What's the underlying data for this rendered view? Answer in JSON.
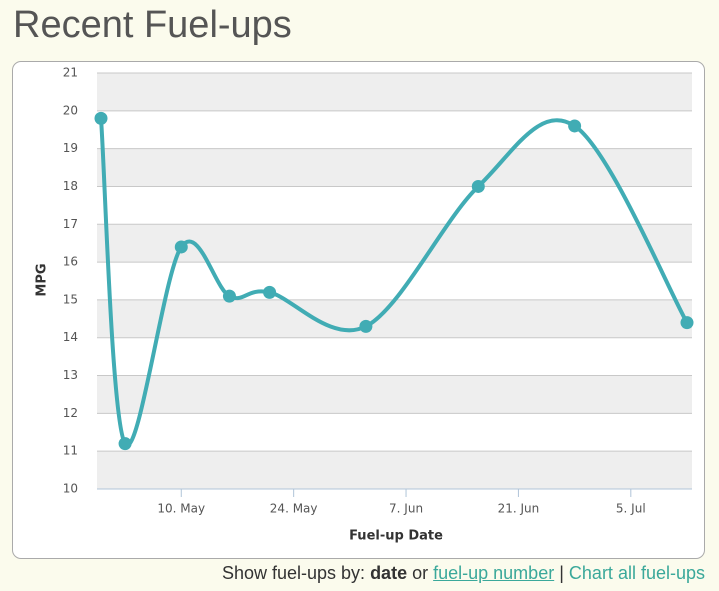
{
  "header": {
    "title": "Recent Fuel-ups"
  },
  "chart_data": {
    "type": "line",
    "x_label": "Fuel-up Date",
    "y_label": "MPG",
    "x": [
      "04-30",
      "05-03",
      "05-10",
      "05-16",
      "05-21",
      "06-02",
      "06-16",
      "06-28",
      "07-12"
    ],
    "series": [
      {
        "name": "MPG",
        "color": "#41acb4",
        "values": [
          19.8,
          11.2,
          16.4,
          15.1,
          15.2,
          14.3,
          18.0,
          19.6,
          14.4
        ]
      }
    ],
    "xlim": [
      "04-30",
      "07-12"
    ],
    "xticks": [
      {
        "value": "05-10",
        "label": "10. May"
      },
      {
        "value": "05-24",
        "label": "24. May"
      },
      {
        "value": "06-07",
        "label": "7. Jun"
      },
      {
        "value": "06-21",
        "label": "21. Jun"
      },
      {
        "value": "07-05",
        "label": "5. Jul"
      }
    ],
    "ylim": [
      10,
      21
    ],
    "yticks": [
      10,
      11,
      12,
      13,
      14,
      15,
      16,
      17,
      18,
      19,
      20,
      21
    ],
    "grid": true,
    "alternate_bands": true,
    "smooth": true
  },
  "footer": {
    "prefix": "Show fuel-ups by:",
    "current": "date",
    "or": "or",
    "number_link": "fuel-up number",
    "separator": "|",
    "all_link": "Chart all fuel-ups"
  }
}
